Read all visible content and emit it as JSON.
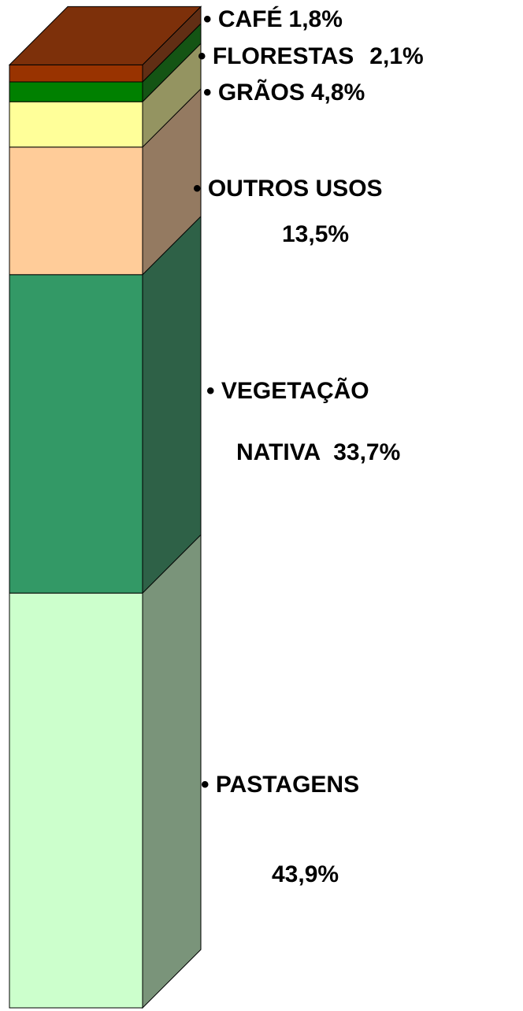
{
  "chart_data": {
    "type": "stacked-bar-3d",
    "series": [
      {
        "name": "PASTAGENS",
        "color": "#ccffcc",
        "values": [
          43.9
        ],
        "value_labels": [
          "43,9%"
        ]
      },
      {
        "name": "VEGETAÇÃO NATIVA",
        "color": "#339966",
        "values": [
          33.7
        ],
        "value_labels": [
          "33,7%"
        ]
      },
      {
        "name": "OUTROS USOS",
        "color": "#ffcc99",
        "values": [
          13.5
        ],
        "value_labels": [
          "13,5%"
        ]
      },
      {
        "name": "GRÃOS",
        "color": "#ffff99",
        "values": [
          4.8
        ],
        "value_labels": [
          "4,8%"
        ]
      },
      {
        "name": "FLORESTAS",
        "color": "#008000",
        "values": [
          2.1
        ],
        "value_labels": [
          "2,1%"
        ]
      },
      {
        "name": "CAFÉ",
        "color": "#993300",
        "values": [
          1.8
        ],
        "value_labels": [
          "1,8%"
        ]
      }
    ]
  }
}
